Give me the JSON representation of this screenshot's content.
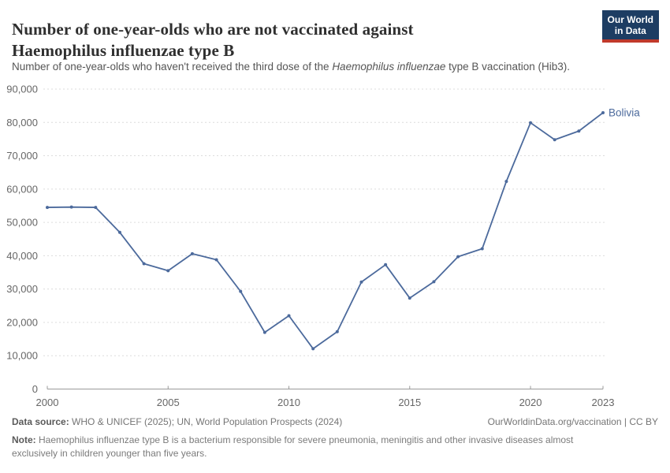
{
  "header": {
    "title": "Number of one-year-olds who are not vaccinated against Haemophilus influenzae type B",
    "subtitle_prefix": "Number of one-year-olds who haven't received the third dose of the ",
    "subtitle_italic": "Haemophilus influenzae",
    "subtitle_suffix": " type B vaccination (Hib3).",
    "logo_line1": "Our World",
    "logo_line2": "in Data"
  },
  "chart_data": {
    "type": "line",
    "title": "Number of one-year-olds who are not vaccinated against Haemophilus influenzae type B",
    "x": [
      2000,
      2001,
      2002,
      2003,
      2004,
      2005,
      2006,
      2007,
      2008,
      2009,
      2010,
      2011,
      2012,
      2013,
      2014,
      2015,
      2016,
      2017,
      2018,
      2019,
      2020,
      2021,
      2022,
      2023
    ],
    "series": [
      {
        "name": "Bolivia",
        "color": "#4C6A9C",
        "values": [
          54500,
          54600,
          54500,
          47000,
          37600,
          35500,
          40600,
          38800,
          29300,
          17000,
          22000,
          12100,
          17200,
          32100,
          37300,
          27300,
          32200,
          39700,
          42100,
          62300,
          79900,
          74800,
          77400,
          82900
        ]
      }
    ],
    "xlabel": "",
    "ylabel": "",
    "ylim": [
      0,
      90000
    ],
    "xlim": [
      2000,
      2023
    ],
    "grid": "horizontal-dashed",
    "legend_position": "end-of-line-label",
    "end_label": "Bolivia",
    "yticks": [
      {
        "value": 0,
        "label": "0"
      },
      {
        "value": 10000,
        "label": "10,000"
      },
      {
        "value": 20000,
        "label": "20,000"
      },
      {
        "value": 30000,
        "label": "30,000"
      },
      {
        "value": 40000,
        "label": "40,000"
      },
      {
        "value": 50000,
        "label": "50,000"
      },
      {
        "value": 60000,
        "label": "60,000"
      },
      {
        "value": 70000,
        "label": "70,000"
      },
      {
        "value": 80000,
        "label": "80,000"
      },
      {
        "value": 90000,
        "label": "90,000"
      }
    ],
    "xticks": [
      {
        "value": 2000,
        "label": "2000"
      },
      {
        "value": 2005,
        "label": "2005"
      },
      {
        "value": 2010,
        "label": "2010"
      },
      {
        "value": 2015,
        "label": "2015"
      },
      {
        "value": 2020,
        "label": "2020"
      },
      {
        "value": 2023,
        "label": "2023"
      }
    ]
  },
  "footer": {
    "data_source_label": "Data source:",
    "data_source_text": " WHO & UNICEF (2025); UN, World Population Prospects (2024)",
    "link_text": "OurWorldinData.org/vaccination | CC BY",
    "note_label": "Note:",
    "note_text": " Haemophilus influenzae type B is a bacterium responsible for severe pneumonia, meningitis and other invasive diseases almost exclusively in children younger than five years."
  },
  "colors": {
    "line": "#4C6A9C",
    "grid": "#dcdcdc",
    "axis": "#9a9a9a",
    "tick_text": "#666666",
    "logo_bg": "#1d3d63",
    "logo_stripe": "#c0392b"
  }
}
